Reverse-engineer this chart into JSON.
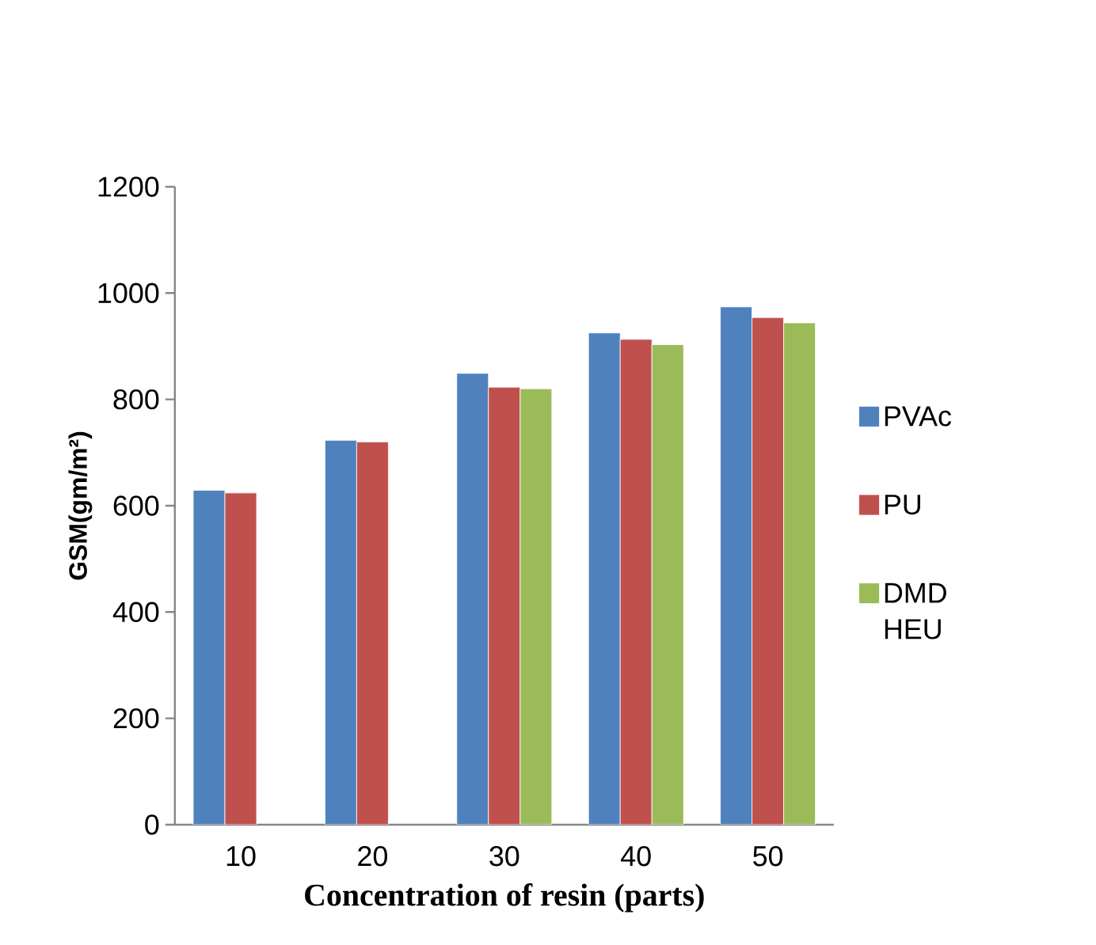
{
  "chart_data": {
    "type": "bar",
    "xlabel": "Concentration of resin (parts)",
    "ylabel": "GSM(gm/m²)",
    "categories": [
      "10",
      "20",
      "30",
      "40",
      "50"
    ],
    "series": [
      {
        "name": "PVAc",
        "color": "#4f81bd",
        "values": [
          629,
          723,
          849,
          925,
          974
        ]
      },
      {
        "name": "PU",
        "color": "#c0504d",
        "values": [
          624,
          720,
          823,
          913,
          954
        ]
      },
      {
        "name": "DMD HEU",
        "color": "#9bbb59",
        "values": [
          null,
          null,
          820,
          903,
          944
        ]
      }
    ],
    "ylim": [
      0,
      1200
    ],
    "yticks": [
      0,
      200,
      400,
      600,
      800,
      1000,
      1200
    ],
    "legend": "right",
    "grid": false
  }
}
